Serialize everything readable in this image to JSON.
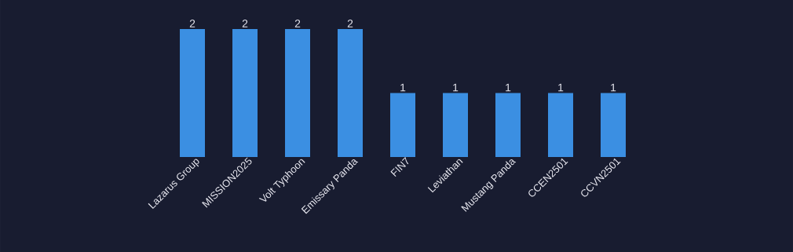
{
  "chart_data": {
    "type": "bar",
    "categories": [
      "Lazarus Group",
      "MISSION2025",
      "Volt Typhoon",
      "Emissary Panda",
      "FIN7",
      "Leviathan",
      "Mustang Panda",
      "CCEN2501",
      "CCVN2501"
    ],
    "values": [
      2,
      2,
      2,
      2,
      1,
      1,
      1,
      1,
      1
    ],
    "color": "#3b8fe2",
    "data_labels": true
  }
}
